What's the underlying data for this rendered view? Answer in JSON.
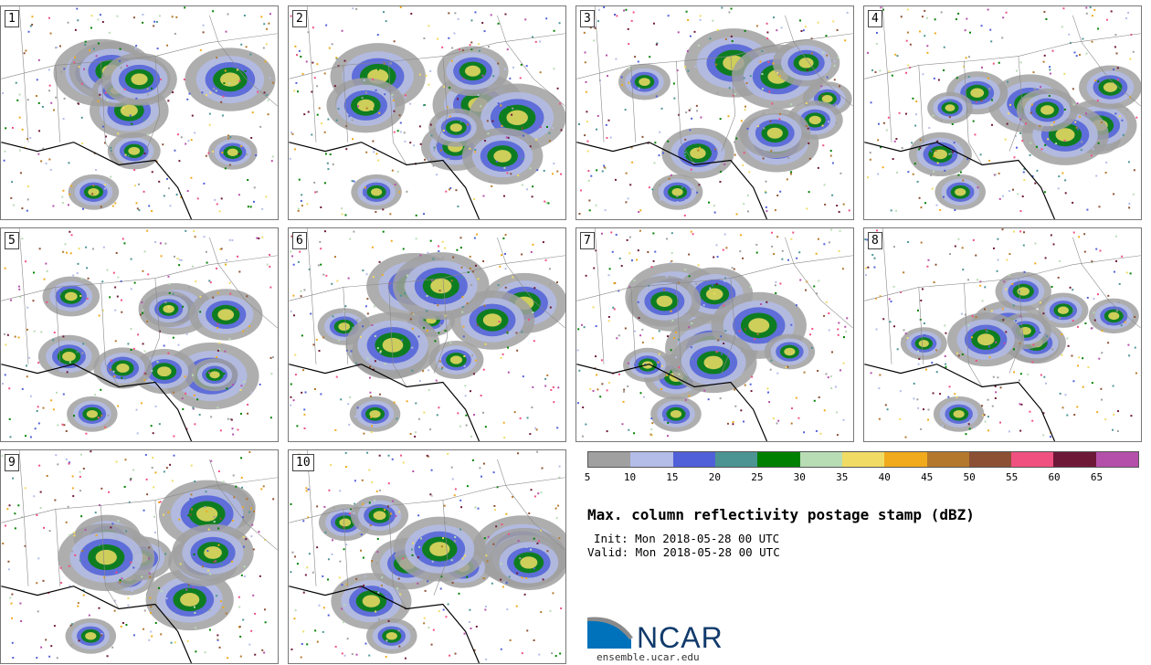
{
  "panels": [
    {
      "label": "1"
    },
    {
      "label": "2"
    },
    {
      "label": "3"
    },
    {
      "label": "4"
    },
    {
      "label": "5"
    },
    {
      "label": "6"
    },
    {
      "label": "7"
    },
    {
      "label": "8"
    },
    {
      "label": "9"
    },
    {
      "label": "10"
    }
  ],
  "colorbar": {
    "colors": [
      "#a0a0a0",
      "#b4bce8",
      "#5060d8",
      "#4c9494",
      "#008000",
      "#b8dcb4",
      "#f0dc64",
      "#f0aa1c",
      "#b4782c",
      "#8c5034",
      "#f05080",
      "#6e1838",
      "#b450aa"
    ],
    "ticks": [
      "5",
      "10",
      "15",
      "20",
      "25",
      "30",
      "35",
      "40",
      "45",
      "50",
      "55",
      "60",
      "65"
    ]
  },
  "title": "Max. column reflectivity postage stamp (dBZ)",
  "init": "Init: Mon 2018-05-28 00 UTC",
  "valid": "Valid: Mon 2018-05-28 00 UTC",
  "logo": {
    "text": "NCAR",
    "colors": {
      "blue": "#0072bc",
      "gray": "#8a8a8a"
    }
  },
  "site": "ensemble.ucar.edu"
}
